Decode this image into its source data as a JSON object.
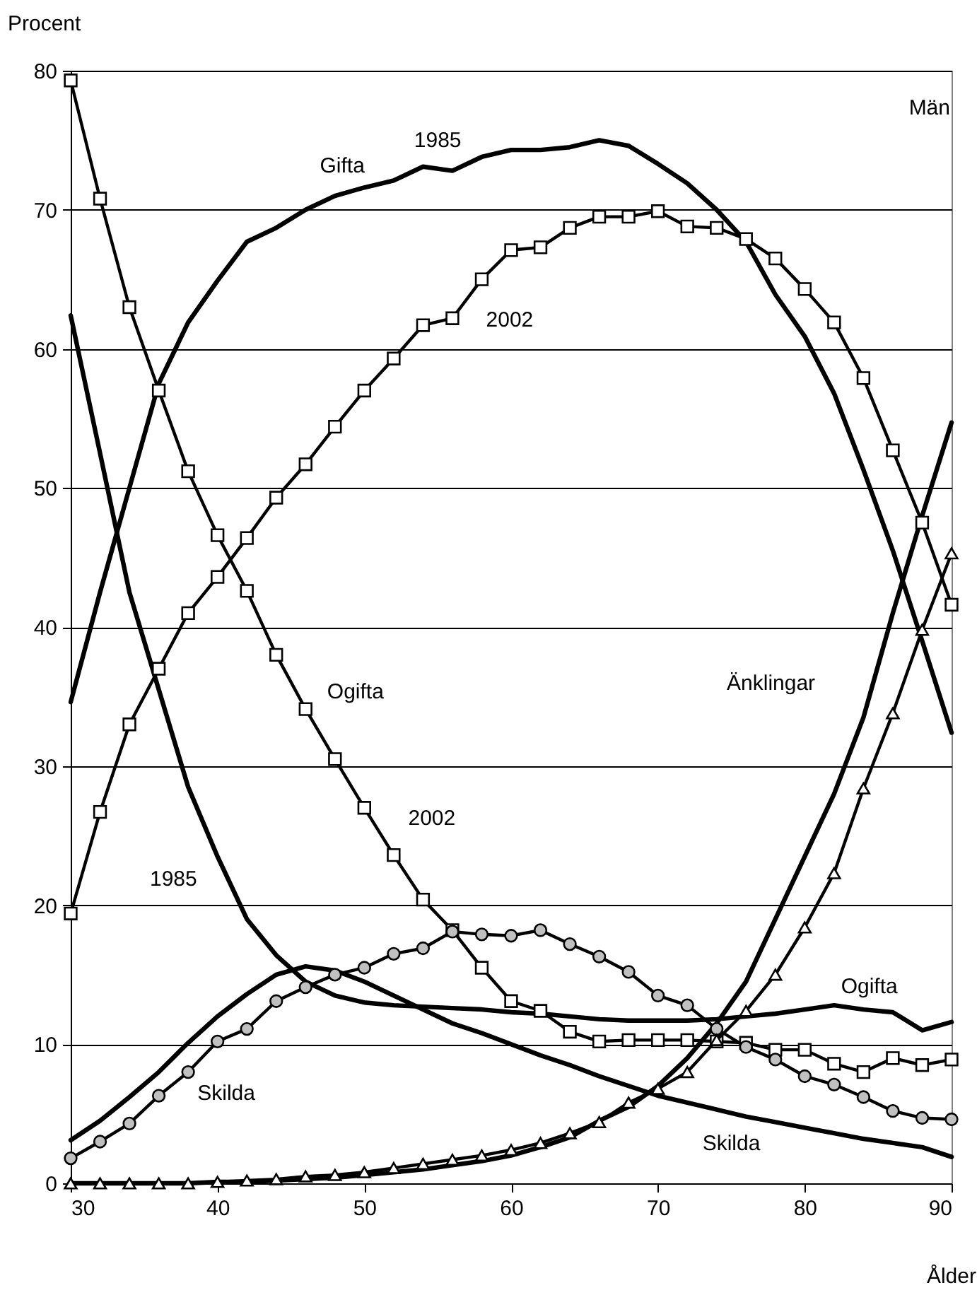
{
  "chart_data": {
    "type": "line",
    "title": "Män",
    "xlabel": "Ålder",
    "ylabel": "Procent",
    "x": [
      30,
      32,
      34,
      36,
      38,
      40,
      42,
      44,
      46,
      48,
      50,
      52,
      54,
      56,
      58,
      60,
      62,
      64,
      66,
      68,
      70,
      72,
      74,
      76,
      78,
      80,
      82,
      84,
      86,
      88,
      90
    ],
    "series": [
      {
        "color": "#000000",
        "marker": "none",
        "values": [
          34.6,
          42.5,
          50,
          57.5,
          61.9,
          64.9,
          67.7,
          68.7,
          70,
          71,
          71.6,
          72.1,
          73.1,
          72.8,
          73.8,
          74.3,
          74.3,
          74.5,
          75,
          74.6,
          73.3,
          71.9,
          70,
          67.7,
          63.9,
          60.9,
          56.8,
          51.3,
          45.5,
          39,
          32.4
        ]
      },
      {
        "color": "#000000",
        "marker": "none",
        "values": [
          62.4,
          52.5,
          42.5,
          35.5,
          28.5,
          23.5,
          19,
          16.4,
          14.5,
          13.5,
          13,
          12.8,
          12.7,
          12.6,
          12.5,
          12.3,
          12.2,
          12,
          11.8,
          11.7,
          11.7,
          11.7,
          11.8,
          12,
          12.2,
          12.5,
          12.8,
          12.5,
          12.3,
          11,
          11.6
        ]
      },
      {
        "color": "#000000",
        "marker": "none",
        "values": [
          3.1,
          4.5,
          6.2,
          8,
          10.1,
          12,
          13.6,
          15,
          15.6,
          15.3,
          14.5,
          13.5,
          12.5,
          11.5,
          10.8,
          10,
          9.2,
          8.5,
          7.7,
          7,
          6.3,
          5.8,
          5.3,
          4.8,
          4.4,
          4,
          3.6,
          3.2,
          2.9,
          2.6,
          1.9
        ]
      },
      {
        "color": "#000000",
        "marker": "none",
        "values": [
          0,
          0,
          0,
          0,
          0,
          0.1,
          0.1,
          0.2,
          0.3,
          0.4,
          0.6,
          0.8,
          1,
          1.3,
          1.6,
          2,
          2.6,
          3.3,
          4.5,
          5.5,
          7,
          9,
          11.5,
          14.5,
          19,
          23.5,
          28,
          33.5,
          41,
          48,
          54.7
        ]
      },
      {
        "color": "#000000",
        "marker": "square",
        "values": [
          19.4,
          26.7,
          33,
          37,
          41,
          43.6,
          46.4,
          49.3,
          51.7,
          54.4,
          57,
          59.3,
          61.7,
          62.2,
          65,
          67.1,
          67.3,
          68.7,
          69.5,
          69.5,
          69.9,
          68.8,
          68.7,
          67.9,
          66.5,
          64.3,
          61.9,
          57.9,
          52.7,
          47.5,
          41.6
        ]
      },
      {
        "color": "#000000",
        "marker": "square",
        "values": [
          79.3,
          70.8,
          63,
          57,
          51.2,
          46.6,
          42.6,
          38,
          34.1,
          30.5,
          27,
          23.6,
          20.4,
          18.2,
          15.5,
          13.1,
          12.4,
          10.9,
          10.2,
          10.3,
          10.3,
          10.3,
          10.2,
          10.1,
          9.6,
          9.6,
          8.6,
          8,
          9,
          8.5,
          8.9
        ]
      },
      {
        "color": "#000000",
        "marker": "circle",
        "values": [
          1.8,
          3,
          4.3,
          6.3,
          8,
          10.2,
          11.1,
          13.1,
          14.1,
          15,
          15.5,
          16.5,
          16.9,
          18.1,
          17.9,
          17.8,
          18.2,
          17.2,
          16.3,
          15.2,
          13.5,
          12.8,
          11.1,
          9.8,
          8.9,
          7.7,
          7.1,
          6.2,
          5.2,
          4.7,
          4.6
        ]
      },
      {
        "color": "#000000",
        "marker": "triangle",
        "values": [
          0,
          0,
          0,
          0,
          0,
          0.1,
          0.2,
          0.3,
          0.5,
          0.6,
          0.8,
          1.1,
          1.4,
          1.7,
          2,
          2.4,
          2.9,
          3.6,
          4.4,
          5.8,
          6.8,
          8,
          10.3,
          12.4,
          15,
          18.4,
          22.3,
          28.4,
          33.8,
          39.8,
          45.3
        ]
      }
    ],
    "annotations": [
      "Gifta",
      "1985",
      "2002",
      "Ogifta",
      "2002",
      "1985",
      "Skilda",
      "Änklingar",
      "Ogifta",
      "Skilda"
    ],
    "xlim": [
      30,
      90
    ],
    "xticks": [
      30,
      40,
      50,
      60,
      70,
      80,
      90
    ],
    "ylim": [
      0,
      80
    ],
    "yticks": [
      0,
      10,
      20,
      30,
      40,
      50,
      60,
      70,
      80
    ],
    "grid": "y",
    "line_style": "solid"
  }
}
